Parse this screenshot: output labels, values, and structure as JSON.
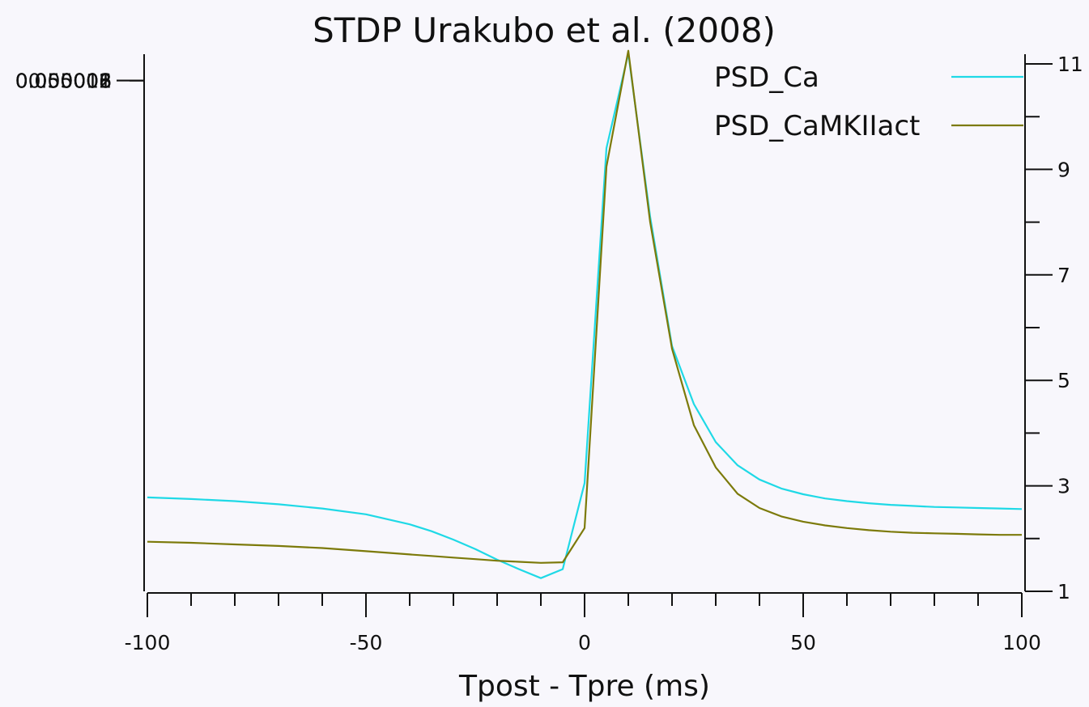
{
  "chart_data": {
    "type": "line",
    "title": "STDP Urakubo et al. (2008)",
    "xlabel": "Tpost - Tpre (ms)",
    "ylabel": "",
    "y2label": "",
    "xlim": [
      -100,
      100
    ],
    "ylim": [
      4.9998e-05,
      0.050012
    ],
    "y2lim": [
      1,
      11
    ],
    "x_ticks": [
      -100,
      -50,
      0,
      50,
      100
    ],
    "x_tick_labels": [
      "-100",
      "-50",
      "0",
      "50",
      "100"
    ],
    "y_ticks": [
      0.050006,
      0.050008,
      0.05001,
      0.050012
    ],
    "y_tick_labels": [
      "0.050006",
      "0.050008",
      "0.05001",
      "0.050012"
    ],
    "y2_ticks": [
      1,
      3,
      5,
      7,
      9,
      11
    ],
    "y2_tick_labels": [
      "1",
      "3",
      "5",
      "7",
      "9",
      "11"
    ],
    "grid": false,
    "legend_position": "top-right",
    "series": [
      {
        "name": "PSD_Ca",
        "axis": "right",
        "color": "#1fd9e6",
        "x": [
          -100,
          -90,
          -80,
          -70,
          -60,
          -50,
          -40,
          -35,
          -30,
          -25,
          -20,
          -15,
          -10,
          -5,
          0,
          5,
          10,
          15,
          20,
          25,
          30,
          35,
          40,
          45,
          50,
          55,
          60,
          65,
          70,
          75,
          80,
          85,
          90,
          95,
          100
        ],
        "y": [
          2.78,
          2.75,
          2.71,
          2.65,
          2.57,
          2.46,
          2.27,
          2.14,
          1.98,
          1.8,
          1.6,
          1.42,
          1.25,
          1.42,
          3.05,
          9.4,
          11.2,
          8.1,
          5.65,
          4.55,
          3.83,
          3.39,
          3.12,
          2.95,
          2.84,
          2.76,
          2.71,
          2.67,
          2.64,
          2.62,
          2.6,
          2.59,
          2.58,
          2.57,
          2.56
        ]
      },
      {
        "name": "PSD_CaMKIIact",
        "axis": "right",
        "color": "#7c7a0a",
        "x": [
          -100,
          -90,
          -80,
          -70,
          -60,
          -50,
          -40,
          -35,
          -30,
          -25,
          -20,
          -15,
          -10,
          -5,
          0,
          5,
          10,
          15,
          20,
          25,
          30,
          35,
          40,
          45,
          50,
          55,
          60,
          65,
          70,
          75,
          80,
          85,
          90,
          95,
          100
        ],
        "y": [
          1.94,
          1.92,
          1.89,
          1.86,
          1.82,
          1.76,
          1.7,
          1.67,
          1.64,
          1.61,
          1.58,
          1.56,
          1.54,
          1.55,
          2.2,
          9.05,
          11.25,
          8.0,
          5.6,
          4.15,
          3.35,
          2.85,
          2.58,
          2.42,
          2.32,
          2.25,
          2.2,
          2.16,
          2.13,
          2.11,
          2.1,
          2.09,
          2.08,
          2.07,
          2.07
        ]
      }
    ]
  }
}
